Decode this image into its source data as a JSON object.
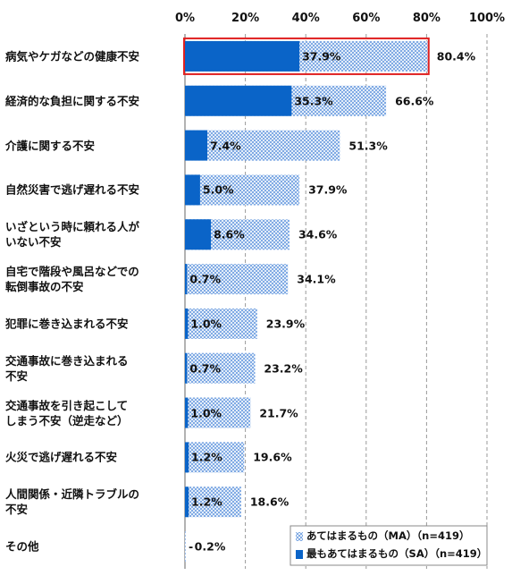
{
  "chart_data": {
    "type": "bar",
    "orientation": "horizontal",
    "categories": [
      "病気やケガなどの健康不安",
      "経済的な負担に関する不安",
      "介護に関する不安",
      "自然災害で逃げ遅れる不安",
      "いざという時に頼れる人が\nいない不安",
      "自宅で階段や風呂などでの\n転倒事故の不安",
      "犯罪に巻き込まれる不安",
      "交通事故に巻き込まれる\n不安",
      "交通事故を引き起こして\nしまう不安（逆走など）",
      "火災で逃げ遅れる不安",
      "人間関係・近隣トラブルの\n不安",
      "その他"
    ],
    "series": [
      {
        "name": "あてはまるもの（MA）（n=419）",
        "color": "#4a86d8",
        "pattern": "dots",
        "values": [
          80.4,
          66.6,
          51.3,
          37.9,
          34.6,
          34.1,
          23.9,
          23.2,
          21.7,
          19.6,
          18.6,
          0.2
        ],
        "value_labels": [
          "80.4%",
          "66.6%",
          "51.3%",
          "37.9%",
          "34.6%",
          "34.1%",
          "23.9%",
          "23.2%",
          "21.7%",
          "19.6%",
          "18.6%",
          "0.2%"
        ]
      },
      {
        "name": "最もあてはまるもの（SA）（n=419）",
        "color": "#0a64c8",
        "pattern": "solid",
        "values": [
          37.9,
          35.3,
          7.4,
          5.0,
          8.6,
          0.7,
          1.0,
          0.7,
          1.0,
          1.2,
          1.2,
          null
        ],
        "value_labels": [
          "37.9%",
          "35.3%",
          "7.4%",
          "5.0%",
          "8.6%",
          "0.7%",
          "1.0%",
          "0.7%",
          "1.0%",
          "1.2%",
          "1.2%",
          "-"
        ]
      }
    ],
    "xlim": [
      0,
      100
    ],
    "xticks": [
      {
        "value": 0,
        "label": "0%"
      },
      {
        "value": 20,
        "label": "20%"
      },
      {
        "value": 40,
        "label": "40%"
      },
      {
        "value": 60,
        "label": "60%"
      },
      {
        "value": 80,
        "label": "80%"
      },
      {
        "value": 100,
        "label": "100%"
      }
    ],
    "grid": true,
    "legend": "lower right",
    "highlight_color": "#e02020"
  }
}
